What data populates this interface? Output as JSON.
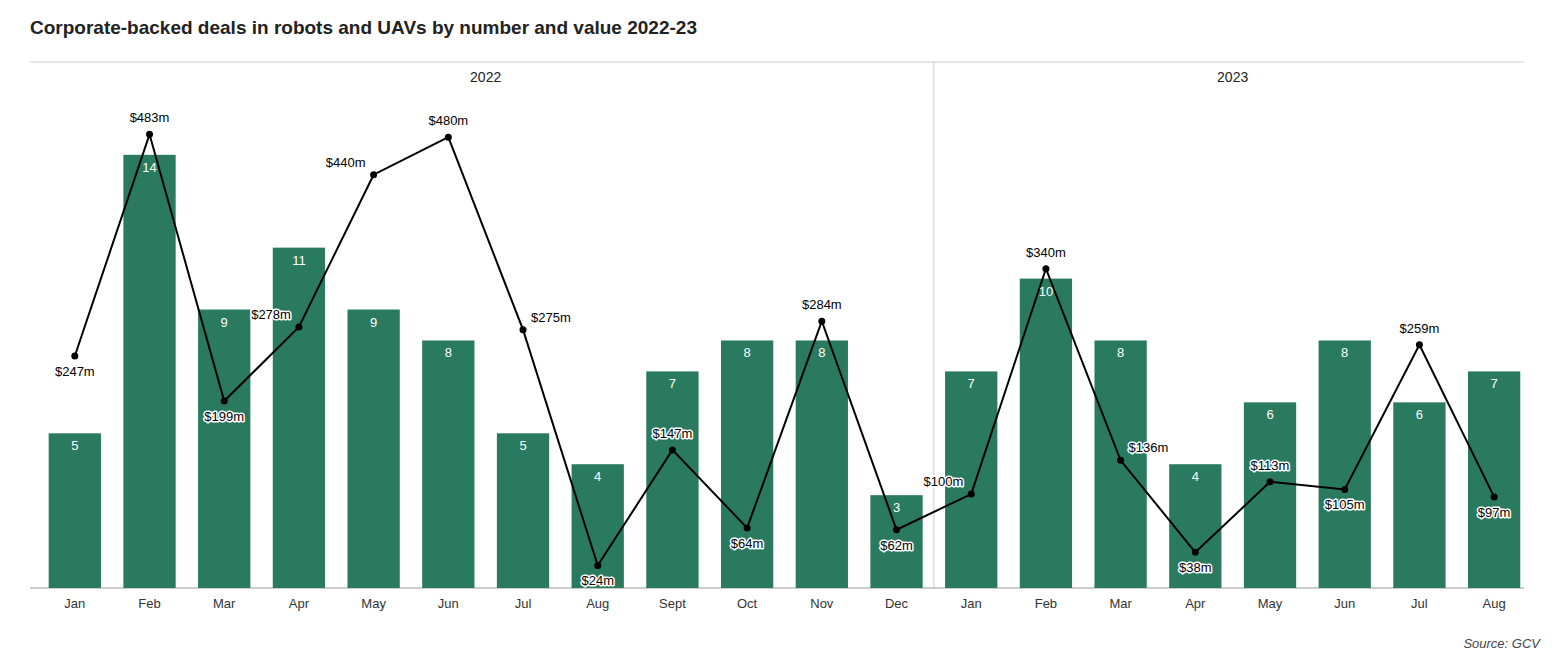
{
  "chart_data": {
    "type": "bar",
    "title": "Corporate-backed deals in robots and UAVs by number and value 2022-23",
    "categories": [
      "Jan",
      "Feb",
      "Mar",
      "Apr",
      "May",
      "Jun",
      "Jul",
      "Aug",
      "Sept",
      "Oct",
      "Nov",
      "Dec",
      "Jan",
      "Feb",
      "Mar",
      "Apr",
      "May",
      "Jun",
      "Jul",
      "Aug"
    ],
    "series": [
      {
        "type": "bar",
        "color": "#2a7a60",
        "data_labels": true,
        "values": [
          5,
          14,
          9,
          11,
          9,
          8,
          5,
          4,
          7,
          8,
          8,
          3,
          7,
          10,
          8,
          4,
          6,
          8,
          6,
          7
        ]
      },
      {
        "type": "line",
        "color": "#000000",
        "marker": "circle",
        "axis": "y2",
        "data_labels": true,
        "values": [
          247,
          483,
          199,
          278,
          440,
          480,
          275,
          24,
          147,
          64,
          284,
          62,
          100,
          340,
          136,
          38,
          113,
          105,
          259,
          97
        ],
        "value_labels": [
          "$247m",
          "$483m",
          "$199m",
          "$278m",
          "$440m",
          "$480m",
          "$275m",
          "$24m",
          "$147m",
          "$64m",
          "$284m",
          "$62m",
          "$100m",
          "$340m",
          "$136m",
          "$38m",
          "$113m",
          "$105m",
          "$259m",
          "$97m"
        ]
      }
    ],
    "ylim": [
      0,
      17
    ],
    "y2lim": [
      0,
      560
    ],
    "tick_labels": "x",
    "grid": false,
    "annotations": [
      {
        "text": "2022"
      },
      {
        "text": "2023"
      }
    ],
    "source": "Source: GCV"
  }
}
